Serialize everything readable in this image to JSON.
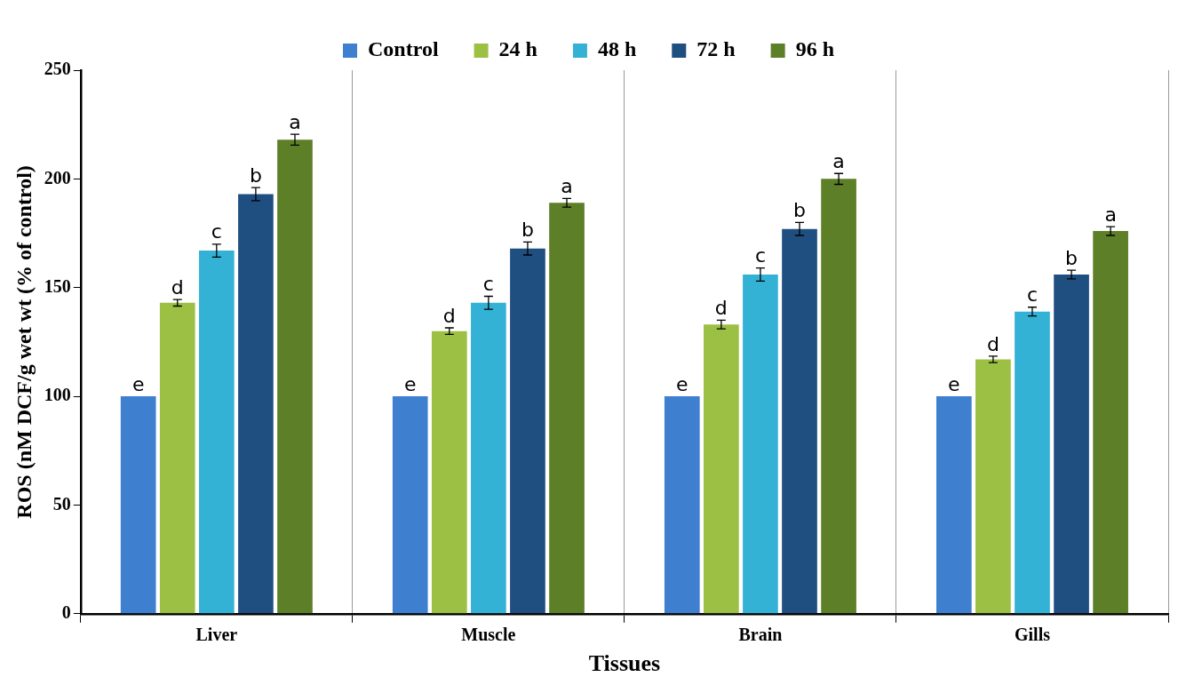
{
  "chart_data": {
    "type": "bar",
    "xlabel": "Tissues",
    "ylabel": "ROS (nM DCF/g wet wt (% of control)",
    "categories": [
      "Liver",
      "Muscle",
      "Brain",
      "Gills"
    ],
    "series": [
      {
        "name": "Control",
        "color": "#3f7fcf",
        "values": [
          100,
          100,
          100,
          100
        ],
        "errors": [
          null,
          null,
          null,
          null
        ],
        "value_labels": [
          "e",
          "e",
          "e",
          "e"
        ]
      },
      {
        "name": "24 h",
        "color": "#9bc043",
        "values": [
          143,
          130,
          133,
          117
        ],
        "errors": [
          1.5,
          1.5,
          2,
          1.5
        ],
        "value_labels": [
          "d",
          "d",
          "d",
          "d"
        ]
      },
      {
        "name": "48 h",
        "color": "#33b2d6",
        "values": [
          167,
          143,
          156,
          139
        ],
        "errors": [
          3,
          3,
          3,
          2
        ],
        "value_labels": [
          "c",
          "c",
          "c",
          "c"
        ]
      },
      {
        "name": "72 h",
        "color": "#1f4e80",
        "values": [
          193,
          168,
          177,
          156
        ],
        "errors": [
          3,
          3,
          3,
          2
        ],
        "value_labels": [
          "b",
          "b",
          "b",
          "b"
        ]
      },
      {
        "name": "96 h",
        "color": "#5c7f27",
        "values": [
          218,
          189,
          200,
          176
        ],
        "errors": [
          2.5,
          2,
          2.5,
          2
        ],
        "value_labels": [
          "a",
          "a",
          "a",
          "a"
        ]
      }
    ],
    "ylim": [
      0,
      250
    ],
    "yticks": [
      0,
      50,
      100,
      150,
      200,
      250
    ],
    "grid": "x",
    "legend": "top"
  }
}
